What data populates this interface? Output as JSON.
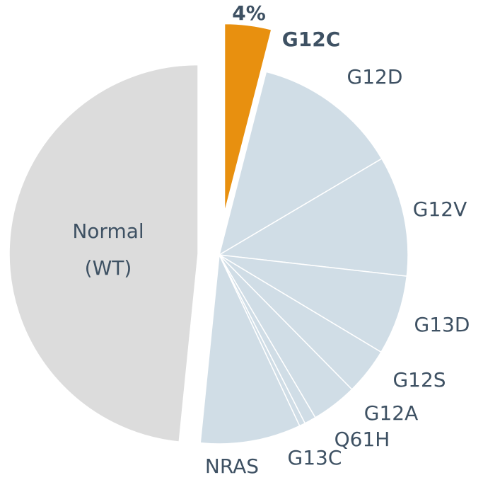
{
  "chart_data": {
    "type": "pie",
    "categories": [
      "G12C",
      "G12D",
      "G12V",
      "G13D",
      "G12S",
      "G12A",
      "Q61H",
      "G13C",
      "NRAS",
      "Normal (WT)"
    ],
    "values": [
      4,
      12.5,
      10.3,
      6.8,
      4,
      3.9,
      1,
      0.5,
      8.6,
      48.4
    ],
    "value_labels": [
      "4%",
      null,
      null,
      null,
      null,
      null,
      null,
      null,
      null,
      null
    ],
    "colors": [
      "#e8900f",
      "#d0dde6",
      "#d0dde6",
      "#d0dde6",
      "#d0dde6",
      "#d0dde6",
      "#d0dde6",
      "#d0dde6",
      "#d0dde6",
      "#dcdcdc"
    ]
  }
}
